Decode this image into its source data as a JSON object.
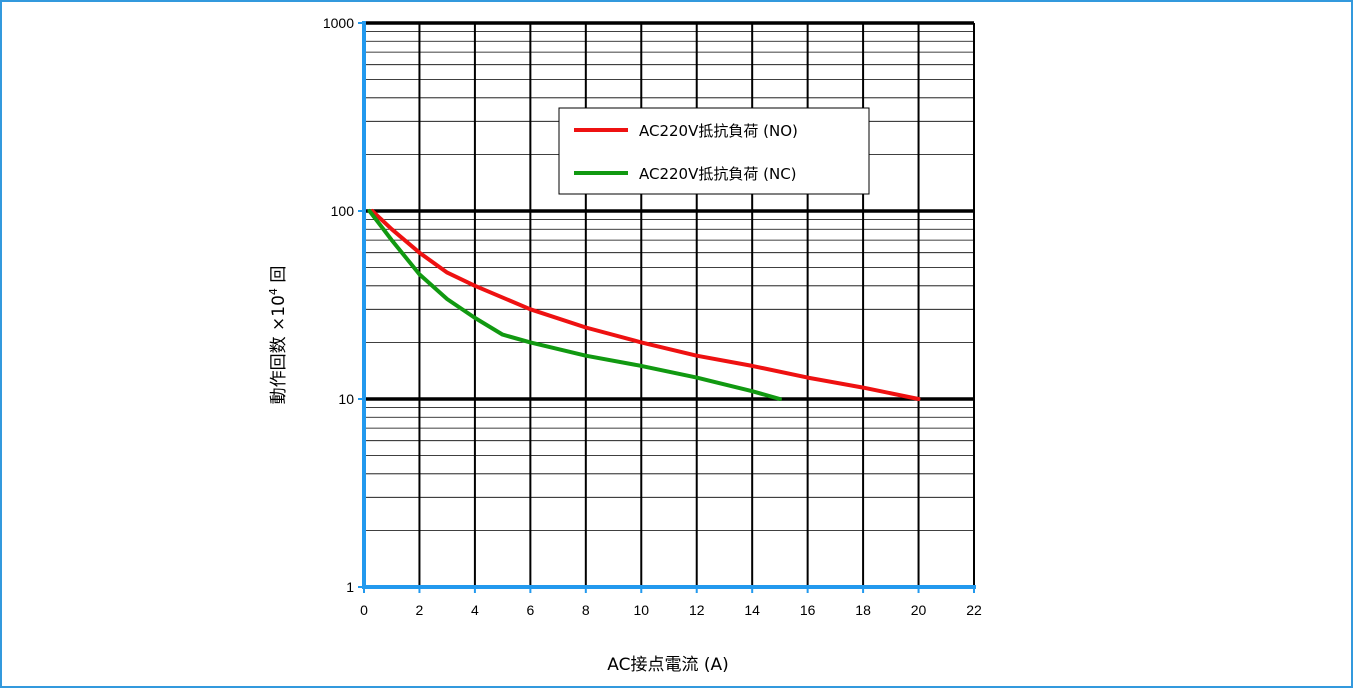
{
  "chart_data": {
    "type": "line",
    "xlabel": "AC接点電流 (A)",
    "ylabel": {
      "pre": "動作回数 ×10",
      "sup": "4",
      "post": " 回"
    },
    "xlim": [
      0,
      22
    ],
    "ylim": [
      1,
      1000
    ],
    "yscale": "log",
    "xticks": [
      0,
      2,
      4,
      6,
      8,
      10,
      12,
      14,
      16,
      18,
      20,
      22
    ],
    "yticks": [
      1,
      10,
      100,
      1000
    ],
    "grid": true,
    "legend_position": "top-right",
    "series": [
      {
        "name": "AC220V抵抗負荷 (NO)",
        "color": "#ee1111",
        "x": [
          0.3,
          1,
          2,
          3,
          4,
          6,
          8,
          10,
          12,
          14,
          16,
          18,
          20
        ],
        "y": [
          100,
          80,
          60,
          47,
          40,
          30,
          24,
          20,
          17,
          15,
          13,
          11.5,
          10
        ]
      },
      {
        "name": "AC220V抵抗負荷 (NC)",
        "color": "#119911",
        "x": [
          0.2,
          1,
          2,
          3,
          4,
          5,
          6,
          8,
          10,
          12,
          14,
          15
        ],
        "y": [
          100,
          70,
          46,
          34,
          27,
          22,
          20,
          17,
          15,
          13,
          11,
          10
        ]
      }
    ]
  },
  "colors": {
    "axis": "#2299ee",
    "major_grid": "#000000",
    "minor_grid": "#000000"
  }
}
